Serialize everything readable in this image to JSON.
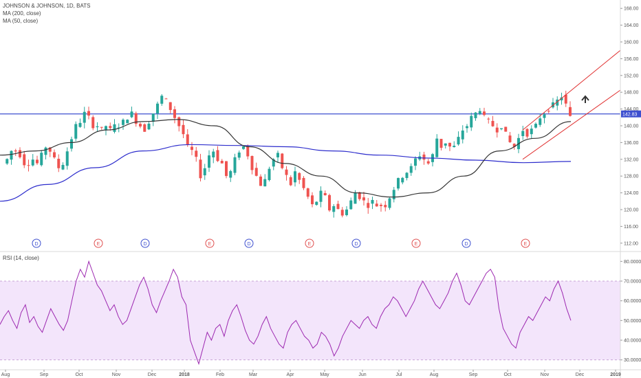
{
  "header": {
    "symbol_line": "JOHNSON & JOHNSON, 1D, BATS",
    "ma200_label": "MA (200, close)",
    "ma50_label": "MA (50, close)",
    "rsi_label": "RSI (14, close)"
  },
  "chart_data": [
    {
      "type": "candlestick",
      "title": "JOHNSON & JOHNSON, 1D, BATS",
      "ylim": [
        110,
        170
      ],
      "y_ticks": [
        "112.00",
        "116.00",
        "120.00",
        "124.00",
        "128.00",
        "132.00",
        "136.00",
        "140.00",
        "144.00",
        "148.00",
        "152.00",
        "156.00",
        "160.00",
        "164.00",
        "168.00"
      ],
      "x_ticks": [
        "Aug",
        "Sep",
        "Oct",
        "Nov",
        "Dec",
        "2018",
        "Feb",
        "Mar",
        "Apr",
        "May",
        "Jun",
        "Jul",
        "Aug",
        "Sep",
        "Oct",
        "Nov",
        "Dec",
        "2019"
      ],
      "price_label": "142.83",
      "horizontal_line": 142.83,
      "close_path": [
        131,
        132,
        134,
        134,
        133,
        131,
        131,
        132,
        131,
        133,
        135,
        134,
        132,
        130,
        131,
        134,
        137,
        140,
        141,
        143,
        142,
        140,
        140,
        139,
        140,
        139,
        140,
        140,
        141,
        142,
        143,
        141,
        140,
        139,
        141,
        143,
        145,
        147,
        146,
        144,
        142,
        140,
        138,
        135,
        134,
        132,
        128,
        130,
        133,
        134,
        132,
        131,
        128,
        129,
        132,
        134,
        135,
        133,
        130,
        128,
        126,
        127,
        130,
        132,
        133,
        130,
        128,
        126,
        129,
        127,
        125,
        123,
        121,
        122,
        124,
        123,
        120,
        121,
        120,
        119,
        120,
        122,
        124,
        123,
        122,
        121,
        122,
        121,
        121,
        121,
        123,
        125,
        127,
        128,
        129,
        130,
        132,
        133,
        132,
        131,
        133,
        137,
        135,
        136,
        135,
        135,
        137,
        139,
        140,
        142,
        143,
        144,
        142,
        141,
        140,
        139,
        140,
        138,
        136,
        135,
        137,
        139,
        138,
        139,
        140,
        142,
        143,
        144,
        145,
        146,
        147,
        145,
        142
      ],
      "series": [
        {
          "name": "MA (200, close)",
          "color": "#2c2ccc",
          "values": [
            122,
            126,
            130,
            134,
            135.5,
            135.3,
            135,
            134,
            133,
            132.3,
            131.8,
            131.2,
            131.5
          ]
        },
        {
          "name": "MA (50, close)",
          "color": "#333333",
          "values": [
            133,
            134,
            136,
            139,
            141,
            141.5,
            140,
            135,
            131,
            128,
            124,
            123,
            124,
            128,
            134,
            137,
            141
          ]
        }
      ],
      "channel": {
        "color": "#e03030",
        "upper": [
          [
            139,
            158
          ],
          [
            145,
            159
          ]
        ],
        "lower": [
          [
            132,
            149
          ],
          [
            137,
            150
          ]
        ]
      },
      "events": [
        "D",
        "E",
        "D",
        "E",
        "D",
        "E",
        "D",
        "E",
        "D",
        "E"
      ]
    },
    {
      "type": "line",
      "title": "RSI (14, close)",
      "ylim": [
        25,
        85
      ],
      "y_ticks": [
        "30.0000",
        "40.0000",
        "50.0000",
        "60.0000",
        "70.0000",
        "80.0000"
      ],
      "band": [
        30,
        70
      ],
      "color": "#9c27b0",
      "values": [
        48,
        52,
        55,
        50,
        46,
        54,
        58,
        49,
        52,
        47,
        44,
        50,
        56,
        52,
        48,
        45,
        50,
        60,
        70,
        76,
        72,
        80,
        74,
        68,
        65,
        60,
        55,
        58,
        52,
        48,
        50,
        56,
        62,
        68,
        72,
        66,
        58,
        54,
        60,
        65,
        70,
        76,
        72,
        62,
        58,
        40,
        34,
        28,
        36,
        44,
        40,
        46,
        48,
        42,
        50,
        55,
        58,
        52,
        45,
        40,
        38,
        42,
        48,
        52,
        46,
        42,
        38,
        36,
        44,
        48,
        50,
        46,
        42,
        40,
        36,
        38,
        44,
        42,
        38,
        32,
        36,
        42,
        46,
        50,
        48,
        46,
        50,
        52,
        48,
        46,
        52,
        56,
        58,
        62,
        60,
        56,
        52,
        56,
        60,
        66,
        70,
        66,
        62,
        58,
        56,
        60,
        64,
        70,
        74,
        68,
        60,
        58,
        62,
        66,
        70,
        74,
        76,
        72,
        56,
        46,
        42,
        38,
        36,
        44,
        48,
        52,
        50,
        54,
        58,
        62,
        60,
        66,
        70,
        64,
        56,
        50
      ]
    }
  ]
}
